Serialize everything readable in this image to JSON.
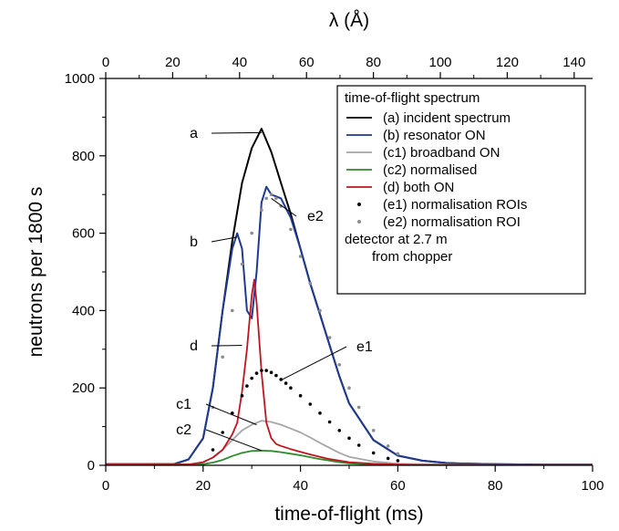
{
  "chart_data": {
    "type": "line",
    "top_axis_label": "λ (Å)",
    "top_ticks": [
      "0",
      "20",
      "40",
      "60",
      "80",
      "100",
      "120",
      "140"
    ],
    "top_range": [
      0,
      145.5
    ],
    "xlabel": "time-of-flight (ms)",
    "ylabel": "neutrons per 1800 s",
    "xlim": [
      0,
      100
    ],
    "ylim": [
      0,
      1000
    ],
    "x_ticks": [
      "0",
      "20",
      "40",
      "60",
      "80",
      "100"
    ],
    "y_ticks": [
      "0",
      "200",
      "400",
      "600",
      "800",
      "1000"
    ],
    "grid": false,
    "legend_title": "time-of-flight spectrum",
    "legend_position": "top-right",
    "legend_note": [
      "detector at 2.7 m",
      "from chopper"
    ],
    "colors": {
      "incident": "#000000",
      "resonator": "#1f3a93",
      "broadband": "#a6a6a6",
      "normalised": "#2e8b2e",
      "both": "#c0141e",
      "roi_e1": "#000000",
      "roi_e2": "#8c8c8c"
    },
    "series": [
      {
        "key": "a",
        "name": "(a) incident spectrum",
        "style": "line",
        "color": "#000000",
        "x": [
          0,
          14,
          17,
          20,
          22,
          24,
          26,
          28,
          30,
          32,
          34,
          36,
          38,
          40,
          42,
          44,
          46,
          48,
          50,
          55,
          60,
          65,
          70,
          75,
          80,
          90,
          100
        ],
        "y": [
          3,
          3,
          15,
          70,
          200,
          400,
          580,
          730,
          820,
          870,
          810,
          730,
          650,
          560,
          470,
          390,
          310,
          230,
          160,
          65,
          25,
          12,
          6,
          4,
          3,
          2,
          2
        ]
      },
      {
        "key": "b",
        "name": "(b) resonator ON",
        "style": "line",
        "color": "#1f3a93",
        "x": [
          0,
          14,
          17,
          20,
          22,
          24,
          26,
          27,
          28,
          29,
          30,
          31,
          32,
          33,
          34,
          36,
          38,
          40,
          42,
          44,
          46,
          48,
          50,
          55,
          60,
          65,
          70,
          75,
          80,
          90,
          100
        ],
        "y": [
          3,
          3,
          15,
          70,
          200,
          400,
          560,
          600,
          560,
          400,
          380,
          500,
          680,
          720,
          700,
          690,
          640,
          560,
          470,
          390,
          310,
          230,
          160,
          65,
          25,
          12,
          6,
          4,
          3,
          2,
          2
        ]
      },
      {
        "key": "c1",
        "name": "(c1) broadband ON",
        "style": "line",
        "color": "#a6a6a6",
        "x": [
          0,
          17,
          20,
          22,
          24,
          26,
          28,
          30,
          32,
          34,
          36,
          38,
          40,
          42,
          44,
          46,
          48,
          50,
          55,
          60,
          70,
          80,
          100
        ],
        "y": [
          2,
          2,
          8,
          20,
          40,
          65,
          90,
          105,
          115,
          112,
          105,
          95,
          85,
          72,
          58,
          45,
          32,
          22,
          10,
          4,
          2,
          1,
          1
        ]
      },
      {
        "key": "c2",
        "name": "(c2) normalised",
        "style": "line",
        "color": "#2e8b2e",
        "x": [
          0,
          20,
          22,
          24,
          26,
          28,
          30,
          32,
          34,
          36,
          38,
          40,
          42,
          44,
          46,
          48,
          50,
          55,
          60,
          70,
          100
        ],
        "y": [
          1,
          3,
          7,
          14,
          24,
          32,
          37,
          38,
          37,
          34,
          30,
          26,
          21,
          16,
          12,
          8,
          5,
          2,
          1,
          1,
          1
        ]
      },
      {
        "key": "d",
        "name": "(d) both ON",
        "style": "line",
        "color": "#c0141e",
        "x": [
          0,
          17,
          20,
          22,
          24,
          26,
          27,
          28,
          29,
          30,
          30.5,
          31,
          32,
          33,
          34,
          35,
          36,
          38,
          40,
          42,
          44,
          46,
          48,
          50,
          55,
          60,
          65,
          70,
          80,
          100
        ],
        "y": [
          2,
          2,
          8,
          20,
          40,
          80,
          110,
          190,
          300,
          440,
          480,
          420,
          240,
          110,
          70,
          55,
          50,
          42,
          35,
          28,
          22,
          16,
          12,
          8,
          4,
          2,
          1,
          1,
          1,
          1
        ]
      },
      {
        "key": "e1",
        "name": "(e1) normalisation ROIs",
        "style": "dots",
        "color": "#000000",
        "x": [
          22,
          24,
          26,
          28,
          29,
          30,
          31,
          32,
          33,
          34,
          35,
          36,
          37,
          38,
          40,
          42,
          44,
          46,
          48,
          50,
          52,
          55,
          58,
          60
        ],
        "y": [
          40,
          85,
          135,
          180,
          205,
          225,
          238,
          245,
          245,
          240,
          232,
          222,
          212,
          200,
          180,
          158,
          135,
          112,
          90,
          70,
          52,
          32,
          18,
          12
        ]
      },
      {
        "key": "e2",
        "name": "(e2) normalisation ROI",
        "style": "dots",
        "color": "#8c8c8c",
        "x": [
          22,
          24,
          26,
          28,
          30,
          32,
          33,
          34,
          35,
          36,
          38,
          40,
          42,
          44,
          46,
          48,
          50,
          52,
          55,
          58,
          60
        ],
        "y": [
          150,
          280,
          400,
          520,
          600,
          660,
          690,
          700,
          690,
          670,
          610,
          540,
          470,
          400,
          330,
          260,
          200,
          150,
          90,
          50,
          30
        ]
      }
    ],
    "annotations": [
      {
        "label": "a",
        "data_x": 32,
        "data_y": 860
      },
      {
        "label": "b",
        "data_x": 27,
        "data_y": 590
      },
      {
        "label": "d",
        "data_x": 28,
        "data_y": 310
      },
      {
        "label": "e2",
        "data_x": 34,
        "data_y": 690
      },
      {
        "label": "e1",
        "data_x": 36,
        "data_y": 220
      },
      {
        "label": "c1",
        "data_x": 31,
        "data_y": 105
      },
      {
        "label": "c2",
        "data_x": 32,
        "data_y": 38
      }
    ]
  }
}
